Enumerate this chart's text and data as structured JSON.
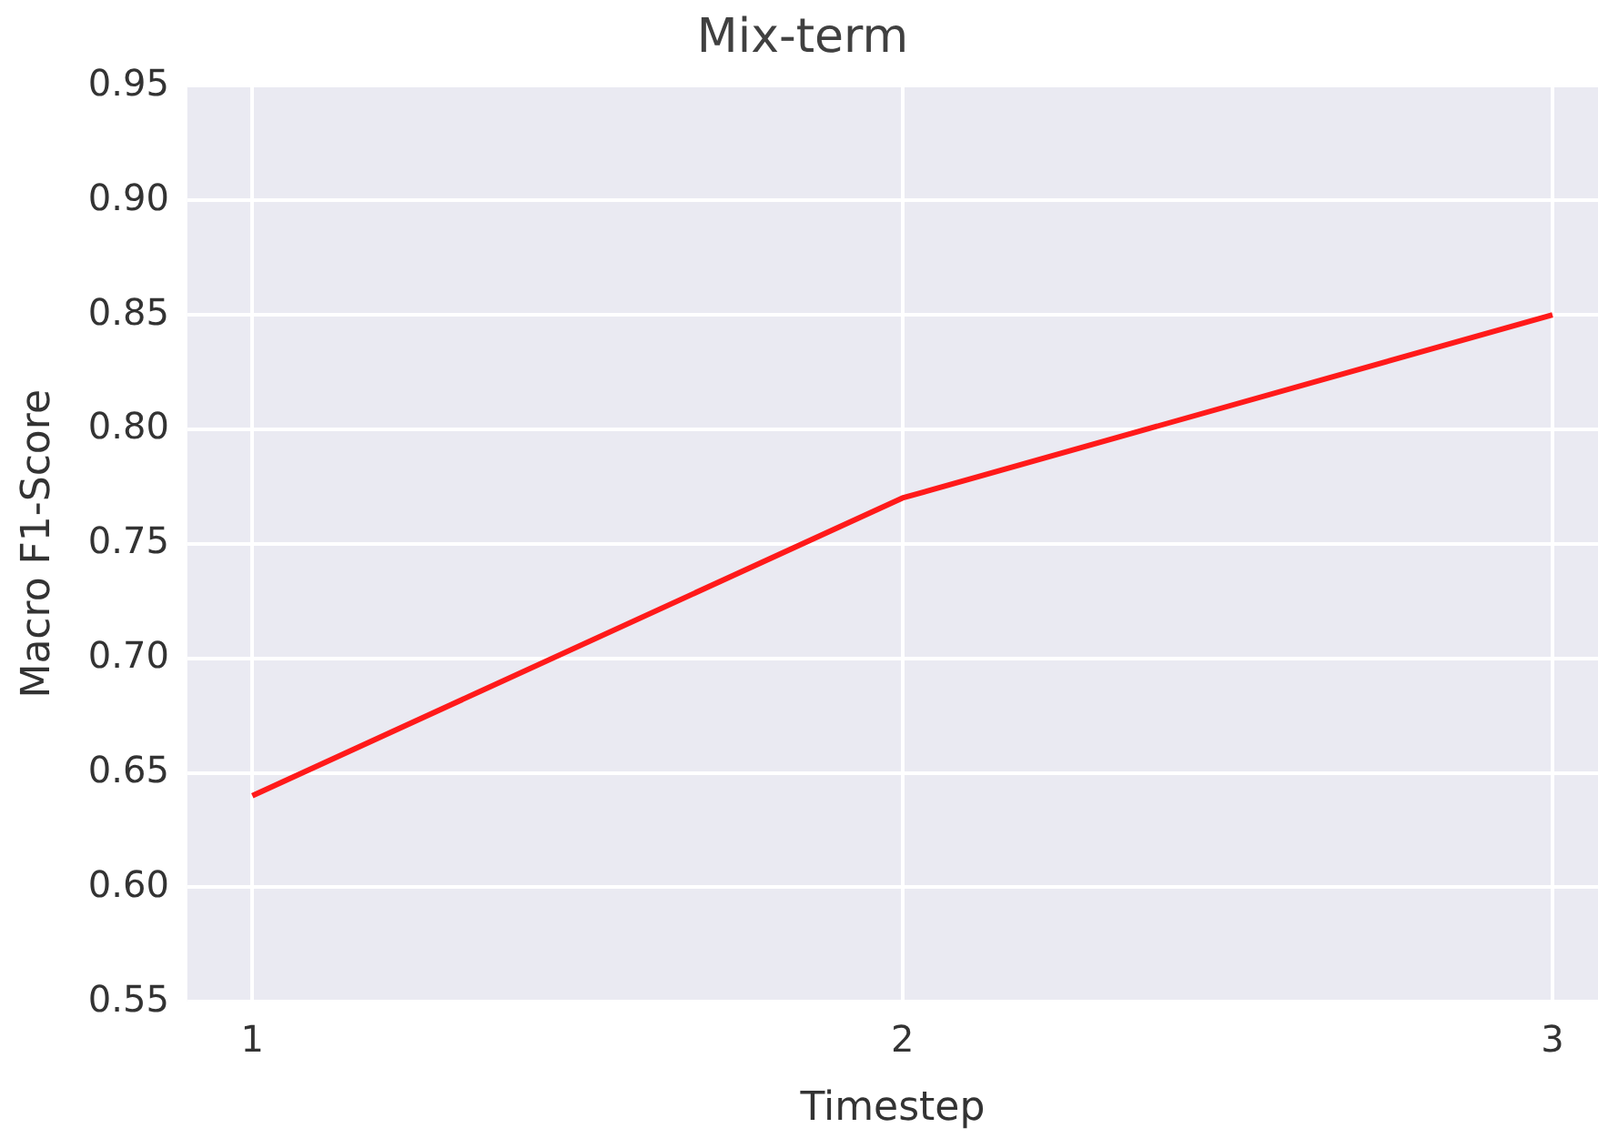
{
  "chart_data": {
    "type": "line",
    "title": "Mix-term",
    "xlabel": "Timestep",
    "ylabel": "Macro F1-Score",
    "x": [
      1,
      2,
      3
    ],
    "series": [
      {
        "color": "#ff1a1a",
        "values": [
          0.64,
          0.77,
          0.85
        ]
      }
    ],
    "xlim": [
      0.9,
      3.07
    ],
    "xticks": [
      1,
      2,
      3
    ],
    "ylim": [
      0.55,
      0.95
    ],
    "yticks": [
      0.55,
      {
        "value": 0.6,
        "label": "0.60"
      },
      0.65,
      {
        "value": 0.7,
        "label": "0.70"
      },
      0.75,
      {
        "value": 0.8,
        "label": "0.80"
      },
      0.85,
      {
        "value": 0.9,
        "label": "0.90"
      },
      0.95
    ],
    "grid": true,
    "marker": "none",
    "line_style": "solid"
  }
}
